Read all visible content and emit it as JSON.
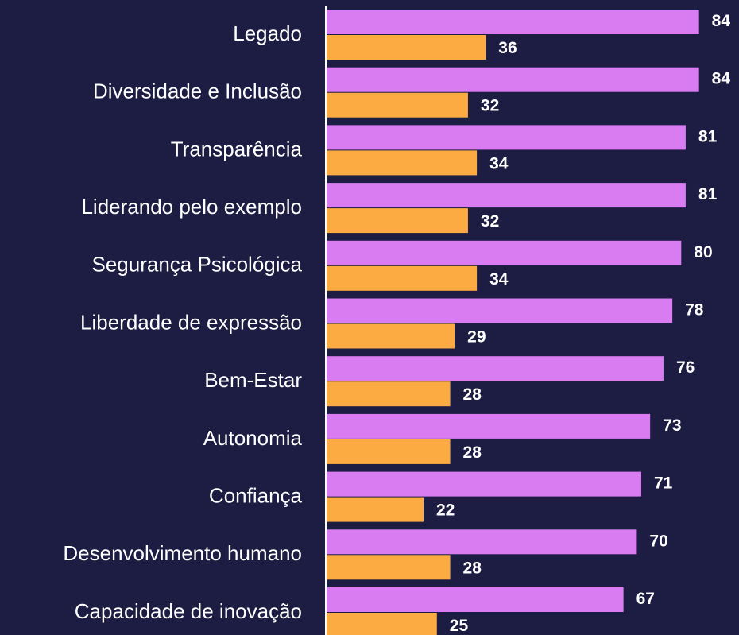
{
  "chart_data": {
    "type": "bar",
    "orientation": "horizontal",
    "categories": [
      "Legado",
      "Diversidade e Inclusão",
      "Transparência",
      "Liderando pelo exemplo",
      "Segurança Psicológica",
      "Liberdade de expressão",
      "Bem-Estar",
      "Autonomia",
      "Confiança",
      "Desenvolvimento humano",
      "Capacidade de inovação"
    ],
    "series": [
      {
        "color": "#d97cf2",
        "values": [
          84,
          84,
          81,
          81,
          80,
          78,
          76,
          73,
          71,
          70,
          67
        ]
      },
      {
        "color": "#fbab41",
        "values": [
          36,
          32,
          34,
          32,
          34,
          29,
          28,
          28,
          22,
          28,
          25
        ]
      }
    ],
    "xlim": [
      0,
      93
    ],
    "grid": false
  }
}
